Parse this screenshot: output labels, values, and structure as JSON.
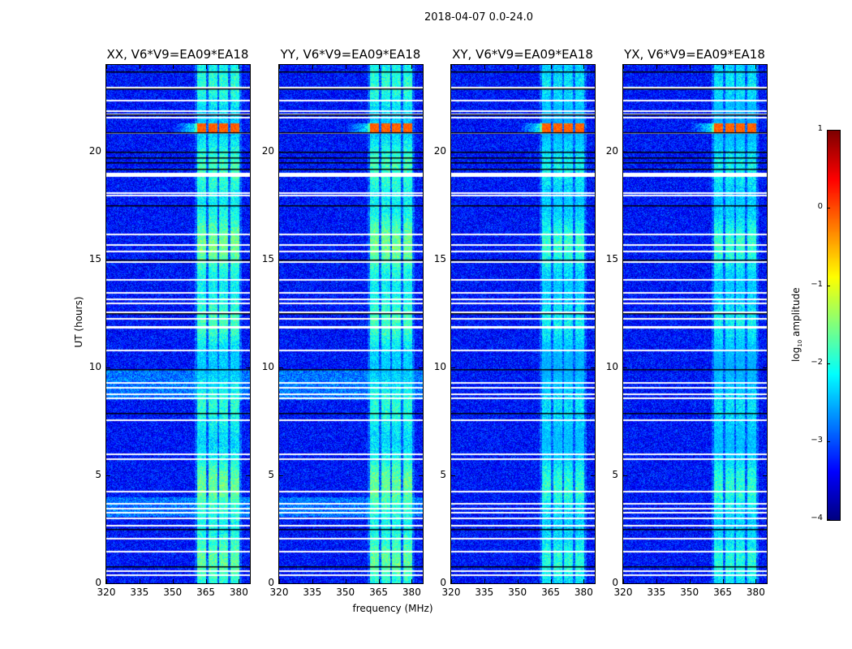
{
  "chart_data": {
    "type": "heatmap",
    "title": "2018-04-07 0.0-24.0",
    "xlabel": "frequency (MHz)",
    "ylabel": "UT (hours)",
    "xlim": [
      320,
      385
    ],
    "ylim": [
      0,
      24
    ],
    "xticks": [
      "320",
      "335",
      "350",
      "365",
      "380"
    ],
    "xtick_values": [
      320,
      335,
      350,
      365,
      380
    ],
    "yticks": [
      "0",
      "5",
      "10",
      "15",
      "20"
    ],
    "ytick_values": [
      0,
      5,
      10,
      15,
      20
    ],
    "panels": [
      {
        "title": "XX, V6*V9=EA09*EA18",
        "show_ylabel": true
      },
      {
        "title": "YY, V6*V9=EA09*EA18",
        "show_ylabel": false
      },
      {
        "title": "XY, V6*V9=EA09*EA18",
        "show_ylabel": false
      },
      {
        "title": "YX, V6*V9=EA09*EA18",
        "show_ylabel": false
      }
    ],
    "background_level": -3.3,
    "rfi_subbands_mhz": [
      [
        361,
        365
      ],
      [
        366,
        370
      ],
      [
        371,
        375
      ],
      [
        376,
        380
      ]
    ],
    "rfi_level": -2.0,
    "strong_rfi_hours": [
      20.9,
      21.3
    ],
    "strong_rfi_level": -0.1,
    "flagged_hours_white": [
      0.4,
      0.6,
      1.5,
      2.1,
      2.7,
      3.05,
      3.3,
      3.5,
      3.7,
      4.3,
      5.8,
      6.0,
      7.6,
      8.6,
      8.8,
      9.1,
      9.3,
      10.8,
      11.85,
      11.9,
      12.3,
      12.6,
      13.0,
      13.2,
      13.5,
      14.1,
      14.9,
      15.4,
      15.7,
      16.2,
      18.0,
      18.1,
      18.9,
      18.95,
      19.0,
      20.9,
      21.6,
      21.75,
      21.9,
      22.4,
      23.0
    ],
    "flagged_hours_black": [
      0.8,
      2.5,
      7.9,
      9.9,
      12.5,
      15.0,
      17.5,
      19.2,
      19.5,
      19.7,
      20.0,
      20.9,
      21.7,
      22.9,
      23.7
    ],
    "colorbar": {
      "label": "log10 amplitude",
      "label_base": "log",
      "label_sub": "10",
      "label_rest": " amplitude",
      "range": [
        -4,
        1
      ],
      "ticks": [
        "−4",
        "−3",
        "−2",
        "−1",
        "0",
        "1"
      ],
      "tick_values": [
        -4,
        -3,
        -2,
        -1,
        0,
        1
      ],
      "colormap": "jet"
    }
  }
}
